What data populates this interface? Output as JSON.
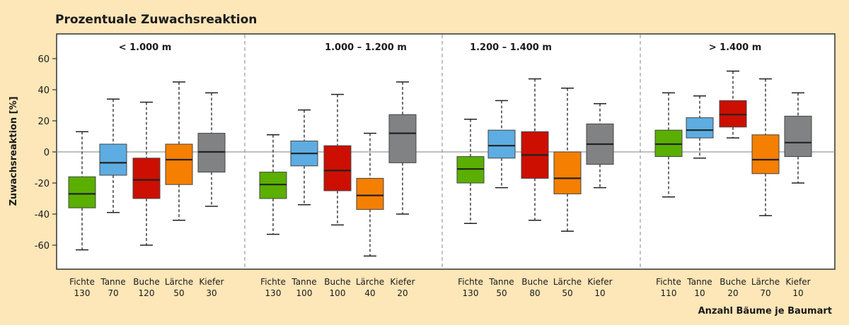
{
  "chart_data": {
    "type": "box",
    "title": "Prozentuale Zuwachsreaktion",
    "ylabel": "Zuwachsreaktion [%]",
    "xlabel": "Anzahl Bäume je Baumart",
    "ylim": [
      -75,
      76
    ],
    "yticks": [
      60,
      40,
      20,
      0,
      -20,
      -40,
      -60
    ],
    "reference_line": 0,
    "colors": {
      "Fichte": "#5aaf00",
      "Tanne": "#5dade2",
      "Buche": "#cc0f00",
      "Lärche": "#f57f00",
      "Kiefer": "#808284"
    },
    "panels": [
      {
        "label": "< 1.000 m",
        "boxes": [
          {
            "species": "Fichte",
            "n": "130",
            "min": -63,
            "q1": -36,
            "median": -27,
            "q3": -16,
            "max": 13
          },
          {
            "species": "Tanne",
            "n": "70",
            "min": -39,
            "q1": -15,
            "median": -7,
            "q3": 5,
            "max": 34
          },
          {
            "species": "Buche",
            "n": "120",
            "min": -60,
            "q1": -30,
            "median": -18,
            "q3": -4,
            "max": 32
          },
          {
            "species": "Lärche",
            "n": "50",
            "min": -44,
            "q1": -21,
            "median": -5,
            "q3": 5,
            "max": 45
          },
          {
            "species": "Kiefer",
            "n": "30",
            "min": -35,
            "q1": -13,
            "median": 0,
            "q3": 12,
            "max": 38
          }
        ]
      },
      {
        "label": "1.000 – 1.200 m",
        "boxes": [
          {
            "species": "Fichte",
            "n": "130",
            "min": -53,
            "q1": -30,
            "median": -21,
            "q3": -13,
            "max": 11
          },
          {
            "species": "Tanne",
            "n": "100",
            "min": -34,
            "q1": -9,
            "median": -1,
            "q3": 7,
            "max": 27
          },
          {
            "species": "Buche",
            "n": "100",
            "min": -47,
            "q1": -25,
            "median": -12,
            "q3": 4,
            "max": 37
          },
          {
            "species": "Lärche",
            "n": "40",
            "min": -67,
            "q1": -37,
            "median": -28,
            "q3": -17,
            "max": 12
          },
          {
            "species": "Kiefer",
            "n": "20",
            "min": -40,
            "q1": -7,
            "median": 12,
            "q3": 24,
            "max": 45
          }
        ]
      },
      {
        "label": "1.200 – 1.400 m",
        "boxes": [
          {
            "species": "Fichte",
            "n": "130",
            "min": -46,
            "q1": -20,
            "median": -11,
            "q3": -3,
            "max": 21
          },
          {
            "species": "Tanne",
            "n": "50",
            "min": -23,
            "q1": -4,
            "median": 4,
            "q3": 14,
            "max": 33
          },
          {
            "species": "Buche",
            "n": "80",
            "min": -44,
            "q1": -17,
            "median": -2,
            "q3": 13,
            "max": 47
          },
          {
            "species": "Lärche",
            "n": "50",
            "min": -51,
            "q1": -27,
            "median": -17,
            "q3": 0,
            "max": 41
          },
          {
            "species": "Kiefer",
            "n": "10",
            "min": -23,
            "q1": -8,
            "median": 5,
            "q3": 18,
            "max": 31
          }
        ]
      },
      {
        "label": "> 1.400 m",
        "boxes": [
          {
            "species": "Fichte",
            "n": "110",
            "min": -29,
            "q1": -3,
            "median": 5,
            "q3": 14,
            "max": 38
          },
          {
            "species": "Tanne",
            "n": "10",
            "min": -4,
            "q1": 9,
            "median": 14,
            "q3": 22,
            "max": 36
          },
          {
            "species": "Buche",
            "n": "20",
            "min": 9,
            "q1": 16,
            "median": 24,
            "q3": 33,
            "max": 52
          },
          {
            "species": "Lärche",
            "n": "70",
            "min": -41,
            "q1": -14,
            "median": -5,
            "q3": 11,
            "max": 47
          },
          {
            "species": "Kiefer",
            "n": "10",
            "min": -20,
            "q1": -3,
            "median": 6,
            "q3": 23,
            "max": 38
          }
        ]
      }
    ]
  }
}
